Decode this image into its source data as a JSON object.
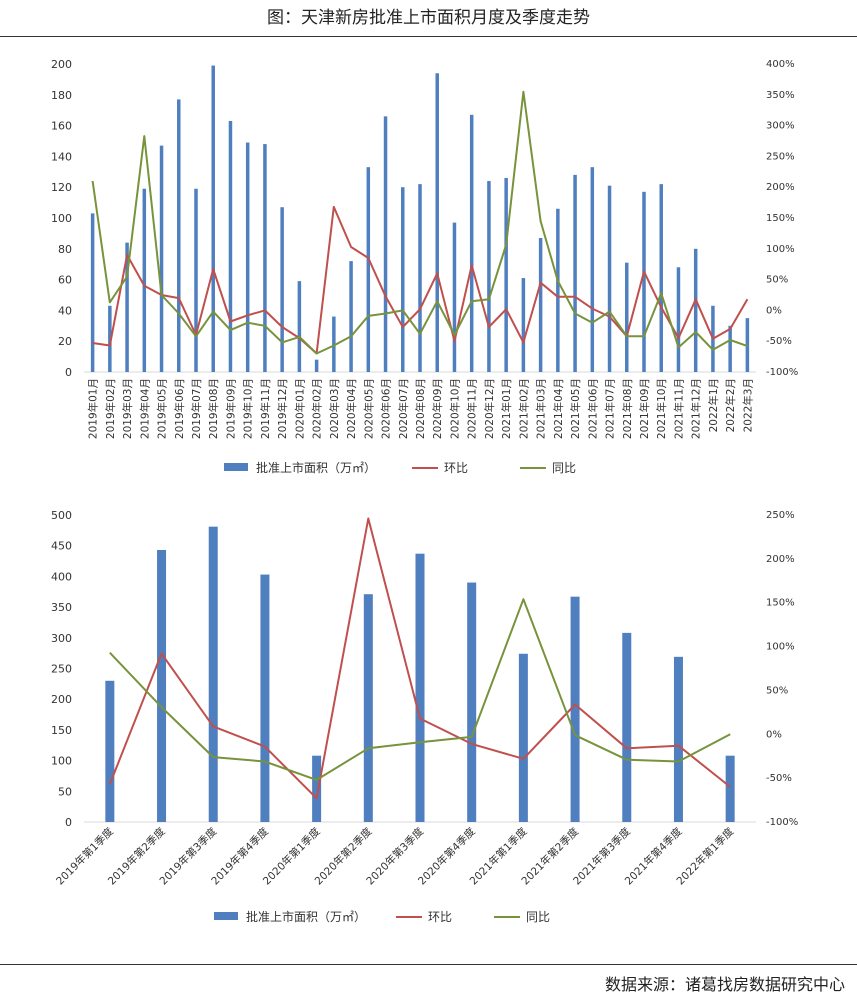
{
  "title": "图：天津新房批准上市面积月度及季度走势",
  "source": "数据来源：诸葛找房数据研究中心",
  "colors": {
    "bar": "#4f7fbf",
    "mom": "#c0504d",
    "yoy": "#77933c"
  },
  "chart_data": [
    {
      "type": "bar",
      "categories": [
        "2019年01月",
        "2019年02月",
        "2019年03月",
        "2019年04月",
        "2019年05月",
        "2019年06月",
        "2019年07月",
        "2019年08月",
        "2019年09月",
        "2019年10月",
        "2019年11月",
        "2019年12月",
        "2020年01月",
        "2020年02月",
        "2020年03月",
        "2020年04月",
        "2020年05月",
        "2020年06月",
        "2020年07月",
        "2020年08月",
        "2020年09月",
        "2020年10月",
        "2020年11月",
        "2020年12月",
        "2021年01月",
        "2021年02月",
        "2021年03月",
        "2021年04月",
        "2021年05月",
        "2021年06月",
        "2021年07月",
        "2021年08月",
        "2021年09月",
        "2021年10月",
        "2021年11月",
        "2021年12月",
        "2022年1月",
        "2022年2月",
        "2022年3月"
      ],
      "left_ticks": [
        "0",
        "20",
        "40",
        "60",
        "80",
        "100",
        "120",
        "140",
        "160",
        "180",
        "200"
      ],
      "right_ticks": [
        "-100%",
        "-50%",
        "0%",
        "50%",
        "100%",
        "150%",
        "200%",
        "250%",
        "300%",
        "350%",
        "400%"
      ],
      "ylim_left": [
        0,
        200
      ],
      "ylim_right": [
        -100,
        400
      ],
      "series": [
        {
          "name": "批准上市面积（万㎡）",
          "kind": "bar",
          "axis": "left",
          "values": [
            103,
            43,
            84,
            119,
            147,
            177,
            119,
            199,
            163,
            149,
            148,
            107,
            59,
            8,
            36,
            72,
            133,
            166,
            120,
            122,
            194,
            97,
            167,
            124,
            126,
            61,
            87,
            106,
            128,
            133,
            121,
            71,
            117,
            122,
            68,
            80,
            43,
            30,
            35
          ]
        },
        {
          "name": "环比",
          "kind": "line",
          "axis": "right",
          "values": [
            -53,
            -57,
            90,
            40,
            25,
            20,
            -40,
            67,
            -18,
            -8,
            0,
            -27,
            -45,
            -70,
            168,
            103,
            85,
            23,
            -27,
            2,
            60,
            -50,
            73,
            -27,
            2,
            -52,
            45,
            22,
            22,
            3,
            -10,
            -42,
            63,
            5,
            -45,
            18,
            -46,
            -30,
            18
          ]
        },
        {
          "name": "同比",
          "kind": "line",
          "axis": "right",
          "values": [
            210,
            13,
            55,
            283,
            25,
            -5,
            -42,
            -2,
            -32,
            -20,
            -25,
            -52,
            -43,
            -70,
            -57,
            -42,
            -9,
            -5,
            0,
            -38,
            15,
            -40,
            15,
            18,
            107,
            355,
            145,
            48,
            -5,
            -20,
            -2,
            -42,
            -42,
            28,
            -60,
            -35,
            -64,
            -48,
            -58
          ]
        }
      ]
    },
    {
      "type": "bar",
      "categories": [
        "2019年第1季度",
        "2019年第2季度",
        "2019年第3季度",
        "2019年第4季度",
        "2020年第1季度",
        "2020年第2季度",
        "2020年第3季度",
        "2020年第4季度",
        "2021年第1季度",
        "2021年第2季度",
        "2021年第3季度",
        "2021年第4季度",
        "2022年第1季度"
      ],
      "left_ticks": [
        "0",
        "50",
        "100",
        "150",
        "200",
        "250",
        "300",
        "350",
        "400",
        "450",
        "500"
      ],
      "right_ticks": [
        "-100%",
        "-50%",
        "0%",
        "50%",
        "100%",
        "150%",
        "200%",
        "250%"
      ],
      "ylim_left": [
        0,
        500
      ],
      "ylim_right": [
        -100,
        250
      ],
      "series": [
        {
          "name": "批准上市面积（万㎡）",
          "kind": "bar",
          "axis": "left",
          "values": [
            230,
            443,
            481,
            403,
            108,
            371,
            437,
            390,
            274,
            367,
            308,
            269,
            108
          ]
        },
        {
          "name": "环比",
          "kind": "line",
          "axis": "right",
          "values": [
            -57,
            92,
            9,
            -14,
            -73,
            246,
            18,
            -11,
            -28,
            34,
            -16,
            -13,
            -60
          ]
        },
        {
          "name": "同比",
          "kind": "line",
          "axis": "right",
          "values": [
            93,
            31,
            -26,
            -31,
            -52,
            -16,
            -9,
            -3,
            154,
            -1,
            -29,
            -31,
            0
          ]
        }
      ]
    }
  ]
}
